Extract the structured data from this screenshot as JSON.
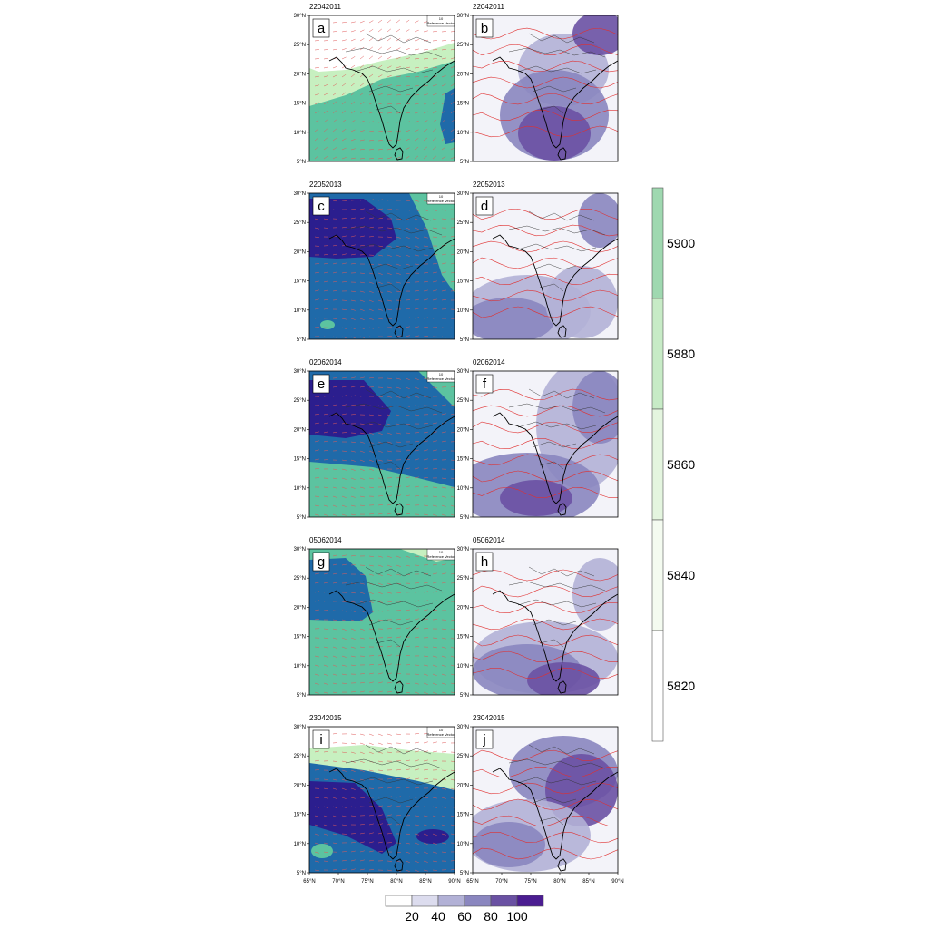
{
  "panels": [
    {
      "letter": "a",
      "date": "22042011",
      "kind": "gph"
    },
    {
      "letter": "b",
      "date": "22042011",
      "kind": "rh"
    },
    {
      "letter": "c",
      "date": "22052013",
      "kind": "gph"
    },
    {
      "letter": "d",
      "date": "22052013",
      "kind": "rh"
    },
    {
      "letter": "e",
      "date": "02062014",
      "kind": "gph"
    },
    {
      "letter": "f",
      "date": "02062014",
      "kind": "rh"
    },
    {
      "letter": "g",
      "date": "05062014",
      "kind": "gph"
    },
    {
      "letter": "h",
      "date": "05062014",
      "kind": "rh"
    },
    {
      "letter": "i",
      "date": "23042015",
      "kind": "gph"
    },
    {
      "letter": "j",
      "date": "23042015",
      "kind": "rh"
    }
  ],
  "y_ticks": [
    "30°N",
    "25°N",
    "20°N",
    "15°N",
    "10°N",
    "5°N"
  ],
  "x_ticks": [
    "65°N",
    "70°N",
    "75°N",
    "80°N",
    "85°N",
    "90°N"
  ],
  "reference_vector": {
    "value": "10",
    "label": "Reference Vector"
  },
  "gph_colorbar": {
    "labels": [
      "5900",
      "5880",
      "5860",
      "5840",
      "5820"
    ],
    "colors": [
      "#9fd8b0",
      "#c7ebc6",
      "#e4f5df",
      "#f4fbf0",
      "#ffffff"
    ]
  },
  "rh_colorbar": {
    "labels": [
      "20",
      "40",
      "60",
      "80",
      "100"
    ],
    "colors": [
      "#ffffff",
      "#dcdcee",
      "#b2b1d6",
      "#8a86bf",
      "#6a51a3",
      "#4b1d91"
    ]
  },
  "colors": {
    "gph_dark": "#2b1e8e",
    "gph_mid": "#1f6aa9",
    "gph_teal": "#5cc3a0",
    "gph_light": "#c7f0c0",
    "rh_contour": "#e03030",
    "wind_vector": "#e05a5a"
  }
}
